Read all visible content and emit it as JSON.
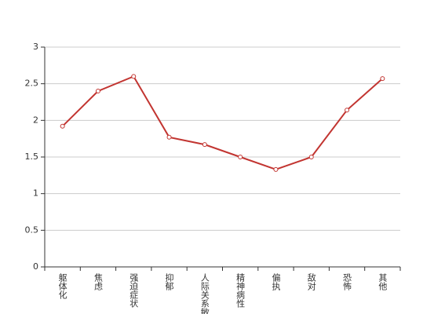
{
  "chart_data": {
    "type": "line",
    "categories": [
      "躯体化",
      "焦虑",
      "强迫症状",
      "抑郁",
      "人际关系敏感",
      "精神病性",
      "偏执",
      "敌对",
      "恐怖",
      "其他"
    ],
    "values": [
      1.92,
      2.4,
      2.6,
      1.77,
      1.67,
      1.5,
      1.33,
      1.5,
      2.14,
      2.57
    ],
    "color": "#c23531",
    "ylim": [
      0,
      3
    ],
    "yticks": [
      0,
      0.5,
      1,
      1.5,
      2,
      2.5,
      3
    ],
    "grid": true
  }
}
